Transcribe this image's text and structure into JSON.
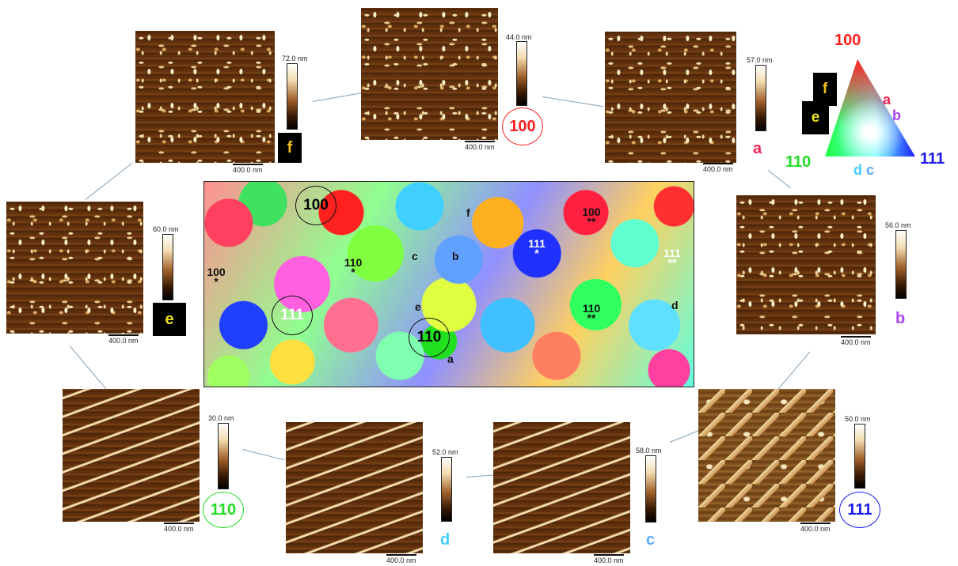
{
  "images": {
    "f": {
      "scale_max": "72.0 nm",
      "scale_bar": "400.0 nm",
      "tag": "f"
    },
    "top": {
      "scale_max": "44.0 nm",
      "scale_bar": "400.0 nm",
      "tag": "100"
    },
    "a": {
      "scale_max": "57.0 nm",
      "scale_bar": "400.0 nm",
      "tag": "a"
    },
    "e": {
      "scale_max": "60.0 nm",
      "scale_bar": "400.0 nm",
      "tag": "e"
    },
    "b": {
      "scale_max": "56.0 nm",
      "scale_bar": "400.0 nm",
      "tag": "b"
    },
    "p110": {
      "scale_max": "30.0 nm",
      "scale_bar": "400.0 nm",
      "tag": "110"
    },
    "d": {
      "scale_max": "52.0 nm",
      "scale_bar": "400.0 nm",
      "tag": "d"
    },
    "c": {
      "scale_max": "58.0 nm",
      "scale_bar": "400.0 nm",
      "tag": "c"
    },
    "p111": {
      "scale_max": "50.0 nm",
      "scale_bar": "400.0 nm",
      "tag": "111"
    }
  },
  "ipf_legend": {
    "top": "100",
    "left": "110",
    "right": "111",
    "markers": [
      "f",
      "e",
      "a",
      "b",
      "d",
      "c"
    ]
  },
  "map": {
    "circles": [
      "100",
      "111",
      "110"
    ],
    "grains": [
      {
        "id": "100s",
        "line1": "100",
        "line2": "*"
      },
      {
        "id": "100ss",
        "line1": "100",
        "line2": "**"
      },
      {
        "id": "110s",
        "line1": "110",
        "line2": "*"
      },
      {
        "id": "110ss",
        "line1": "110",
        "line2": "**"
      },
      {
        "id": "111s",
        "line1": "111",
        "line2": "*"
      },
      {
        "id": "111ss",
        "line1": "111",
        "line2": "**"
      }
    ],
    "letters": [
      "c",
      "b",
      "f",
      "e",
      "a",
      "d"
    ]
  },
  "colors": {
    "red": "#ff2020",
    "green": "#22dd22",
    "blue": "#1a1aee",
    "pink": "#ee2255",
    "purple": "#aa44ee",
    "cyan": "#44ccff",
    "lightblue": "#55aaff",
    "yellow": "#f0c020"
  }
}
